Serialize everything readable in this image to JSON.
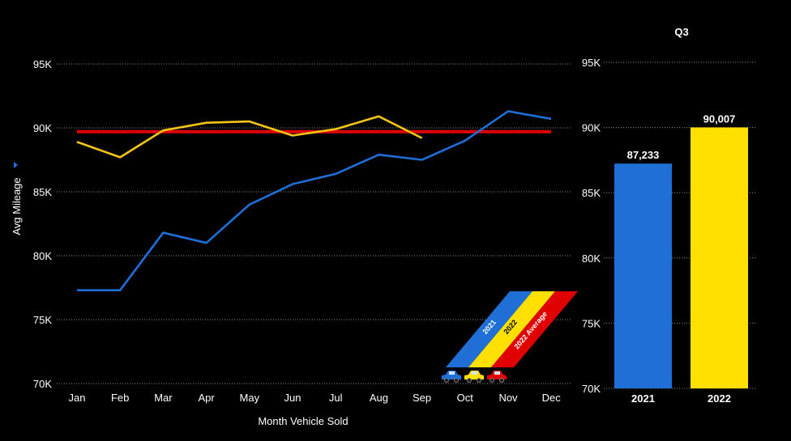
{
  "chart_data": [
    {
      "type": "line",
      "xlabel": "Month Vehicle Sold",
      "ylabel": "Avg Mileage",
      "ylim": [
        70000,
        95000
      ],
      "yticks": [
        "70K",
        "75K",
        "80K",
        "85K",
        "90K",
        "95K"
      ],
      "ytick_values": [
        70000,
        75000,
        80000,
        85000,
        90000,
        95000
      ],
      "grid": true,
      "categories": [
        "Jan",
        "Feb",
        "Mar",
        "Apr",
        "May",
        "Jun",
        "Jul",
        "Aug",
        "Sep",
        "Oct",
        "Nov",
        "Dec"
      ],
      "series": [
        {
          "name": "2021",
          "color": "#1f6fd6",
          "values": [
            77300,
            77300,
            81800,
            81000,
            84000,
            85600,
            86400,
            87900,
            87500,
            89000,
            91300,
            90700
          ]
        },
        {
          "name": "2022",
          "color": "#f5c518",
          "values": [
            88900,
            87700,
            89800,
            90400,
            90500,
            89400,
            89900,
            90900,
            89200,
            null,
            null,
            null
          ]
        },
        {
          "name": "2022 Average",
          "color": "#e00000",
          "values": [
            89700,
            89700,
            89700,
            89700,
            89700,
            89700,
            89700,
            89700,
            89700,
            89700,
            89700,
            89700
          ]
        }
      ]
    },
    {
      "type": "bar",
      "title": "Q3",
      "categories": [
        "2021",
        "2022"
      ],
      "values": [
        87233,
        90007
      ],
      "value_labels": [
        "87,233",
        "90,007"
      ],
      "colors": [
        "#1f6fd6",
        "#ffe000"
      ],
      "ylim": [
        70000,
        95000
      ],
      "yticks": [
        "70K",
        "75K",
        "80K",
        "85K",
        "90K",
        "95K"
      ],
      "ytick_values": [
        70000,
        75000,
        80000,
        85000,
        90000,
        95000
      ],
      "grid": true
    }
  ],
  "legend": {
    "entries": [
      {
        "label": "2021",
        "color": "#1f6fd6",
        "car_icon": "car-blue-icon"
      },
      {
        "label": "2022",
        "color": "#ffe000",
        "car_icon": "car-yellow-icon"
      },
      {
        "label": "2022 Average",
        "color": "#e00000",
        "car_icon": "car-red-icon"
      }
    ]
  }
}
